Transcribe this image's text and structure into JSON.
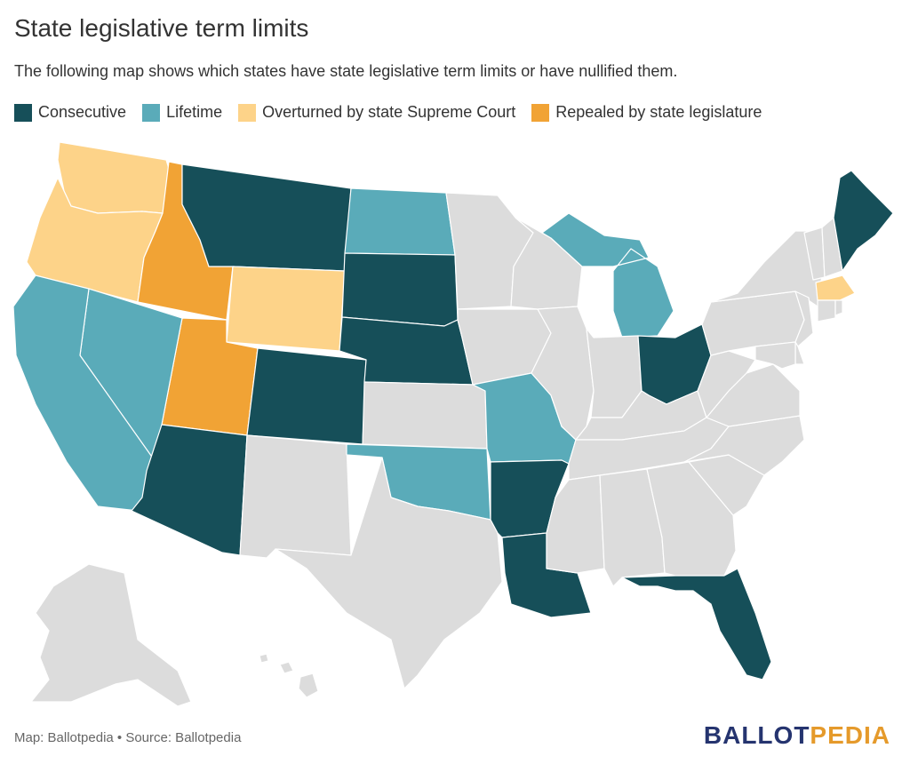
{
  "title": "State legislative term limits",
  "subtitle": "The following map shows which states have state legislative term limits or have nullified them.",
  "legend": [
    {
      "label": "Consecutive",
      "color": "#164f59"
    },
    {
      "label": "Lifetime",
      "color": "#5aabb9"
    },
    {
      "label": "Overturned by state Supreme Court",
      "color": "#fdd389"
    },
    {
      "label": "Repealed by state legislature",
      "color": "#f1a335"
    }
  ],
  "colors": {
    "none": "#dcdcdc",
    "consecutive": "#164f59",
    "lifetime": "#5aabb9",
    "overturned": "#fdd389",
    "repealed": "#f1a335"
  },
  "states": [
    {
      "id": "WA",
      "cat": "overturned"
    },
    {
      "id": "OR",
      "cat": "overturned"
    },
    {
      "id": "ID",
      "cat": "repealed"
    },
    {
      "id": "MT",
      "cat": "consecutive"
    },
    {
      "id": "WY",
      "cat": "overturned"
    },
    {
      "id": "UT",
      "cat": "repealed"
    },
    {
      "id": "NV",
      "cat": "lifetime"
    },
    {
      "id": "CA",
      "cat": "lifetime"
    },
    {
      "id": "AZ",
      "cat": "consecutive"
    },
    {
      "id": "CO",
      "cat": "consecutive"
    },
    {
      "id": "NM",
      "cat": "none"
    },
    {
      "id": "ND",
      "cat": "lifetime"
    },
    {
      "id": "SD",
      "cat": "consecutive"
    },
    {
      "id": "NE",
      "cat": "consecutive"
    },
    {
      "id": "KS",
      "cat": "none"
    },
    {
      "id": "OK",
      "cat": "lifetime"
    },
    {
      "id": "TX",
      "cat": "none"
    },
    {
      "id": "MN",
      "cat": "none"
    },
    {
      "id": "IA",
      "cat": "none"
    },
    {
      "id": "MO",
      "cat": "lifetime"
    },
    {
      "id": "AR",
      "cat": "consecutive"
    },
    {
      "id": "LA",
      "cat": "consecutive"
    },
    {
      "id": "WI",
      "cat": "none"
    },
    {
      "id": "IL",
      "cat": "none"
    },
    {
      "id": "MI",
      "cat": "lifetime"
    },
    {
      "id": "IN",
      "cat": "none"
    },
    {
      "id": "OH",
      "cat": "consecutive"
    },
    {
      "id": "KY",
      "cat": "none"
    },
    {
      "id": "TN",
      "cat": "none"
    },
    {
      "id": "MS",
      "cat": "none"
    },
    {
      "id": "AL",
      "cat": "none"
    },
    {
      "id": "GA",
      "cat": "none"
    },
    {
      "id": "FL",
      "cat": "consecutive"
    },
    {
      "id": "SC",
      "cat": "none"
    },
    {
      "id": "NC",
      "cat": "none"
    },
    {
      "id": "VA",
      "cat": "none"
    },
    {
      "id": "WV",
      "cat": "none"
    },
    {
      "id": "PA",
      "cat": "none"
    },
    {
      "id": "NY",
      "cat": "none"
    },
    {
      "id": "NJ",
      "cat": "none"
    },
    {
      "id": "DE",
      "cat": "none"
    },
    {
      "id": "MD",
      "cat": "none"
    },
    {
      "id": "VT",
      "cat": "none"
    },
    {
      "id": "NH",
      "cat": "none"
    },
    {
      "id": "ME",
      "cat": "consecutive"
    },
    {
      "id": "MA",
      "cat": "overturned"
    },
    {
      "id": "CT",
      "cat": "none"
    },
    {
      "id": "RI",
      "cat": "none"
    },
    {
      "id": "AK",
      "cat": "none"
    },
    {
      "id": "HI",
      "cat": "none"
    }
  ],
  "footer": "Map: Ballotpedia • Source: Ballotpedia",
  "logo": {
    "part1": "BALLOT",
    "part2": "PEDIA"
  }
}
